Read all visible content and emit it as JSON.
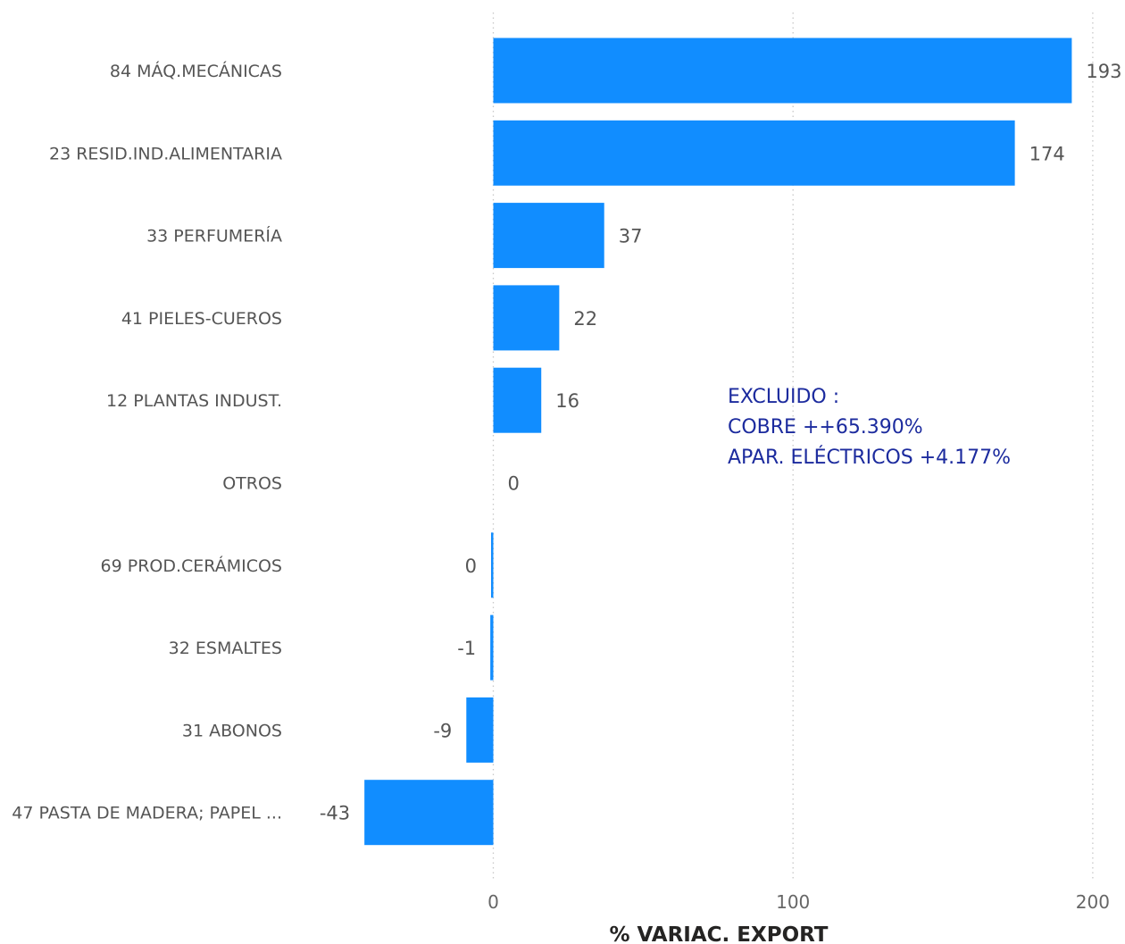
{
  "chart_data": {
    "type": "bar",
    "orientation": "horizontal",
    "categories": [
      "84 MÁQ.MECÁNICAS",
      "23 RESID.IND.ALIMENTARIA",
      "33 PERFUMERÍA",
      "41 PIELES-CUEROS",
      "12 PLANTAS INDUST.",
      "OTROS",
      "69 PROD.CERÁMICOS",
      "32 ESMALTES",
      "31 ABONOS",
      "47 PASTA DE MADERA; PAPEL ..."
    ],
    "values": [
      193,
      174,
      37,
      22,
      16,
      0,
      -0.4,
      -1,
      -9,
      -43
    ],
    "value_labels": [
      "193",
      "174",
      "37",
      "22",
      "16",
      "0",
      "0",
      "-1",
      "-9",
      "-43"
    ],
    "xlabel": "% VARIAC. EXPORT",
    "ylabel": "",
    "xlim": [
      -45,
      200
    ],
    "xticks": [
      0,
      100,
      200
    ],
    "tick_labels": [
      "0",
      "100",
      "200"
    ],
    "grid": true,
    "bar_color": "#118dff"
  },
  "annotation": {
    "lines": [
      "EXCLUIDO :",
      "COBRE ++65.390%",
      "APAR. ELÉCTRICOS +4.177%"
    ],
    "color": "#1c2b9e"
  }
}
